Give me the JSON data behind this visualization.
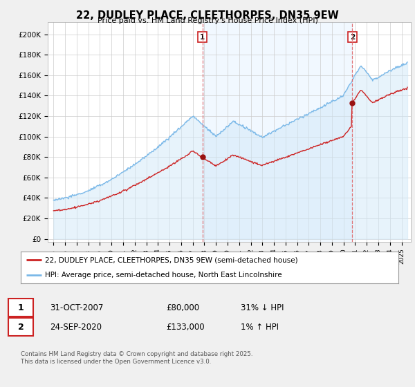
{
  "title_line1": "22, DUDLEY PLACE, CLEETHORPES, DN35 9EW",
  "title_line2": "Price paid vs. HM Land Registry's House Price Index (HPI)",
  "hpi_color": "#7ab8e8",
  "hpi_fill_color": "#d0e8f8",
  "price_color": "#cc2222",
  "vline_color": "#e06060",
  "yticks": [
    0,
    20000,
    40000,
    60000,
    80000,
    100000,
    120000,
    140000,
    160000,
    180000,
    200000
  ],
  "ytick_labels": [
    "£0",
    "£20K",
    "£40K",
    "£60K",
    "£80K",
    "£100K",
    "£120K",
    "£140K",
    "£160K",
    "£180K",
    "£200K"
  ],
  "ylim": [
    -3000,
    212000
  ],
  "legend_label_price": "22, DUDLEY PLACE, CLEETHORPES, DN35 9EW (semi-detached house)",
  "legend_label_hpi": "HPI: Average price, semi-detached house, North East Lincolnshire",
  "annotation_1_date": "31-OCT-2007",
  "annotation_1_price": "£80,000",
  "annotation_1_change": "31% ↓ HPI",
  "annotation_2_date": "24-SEP-2020",
  "annotation_2_price": "£133,000",
  "annotation_2_change": "1% ↑ HPI",
  "footnote": "Contains HM Land Registry data © Crown copyright and database right 2025.\nThis data is licensed under the Open Government Licence v3.0.",
  "background_color": "#f0f0f0",
  "plot_bg_color": "#ffffff",
  "grid_color": "#cccccc",
  "ann1_x": 2007.833,
  "ann1_y": 80000,
  "ann2_x": 2020.75,
  "ann2_y": 133000,
  "xmin": 1994.5,
  "xmax": 2025.8
}
